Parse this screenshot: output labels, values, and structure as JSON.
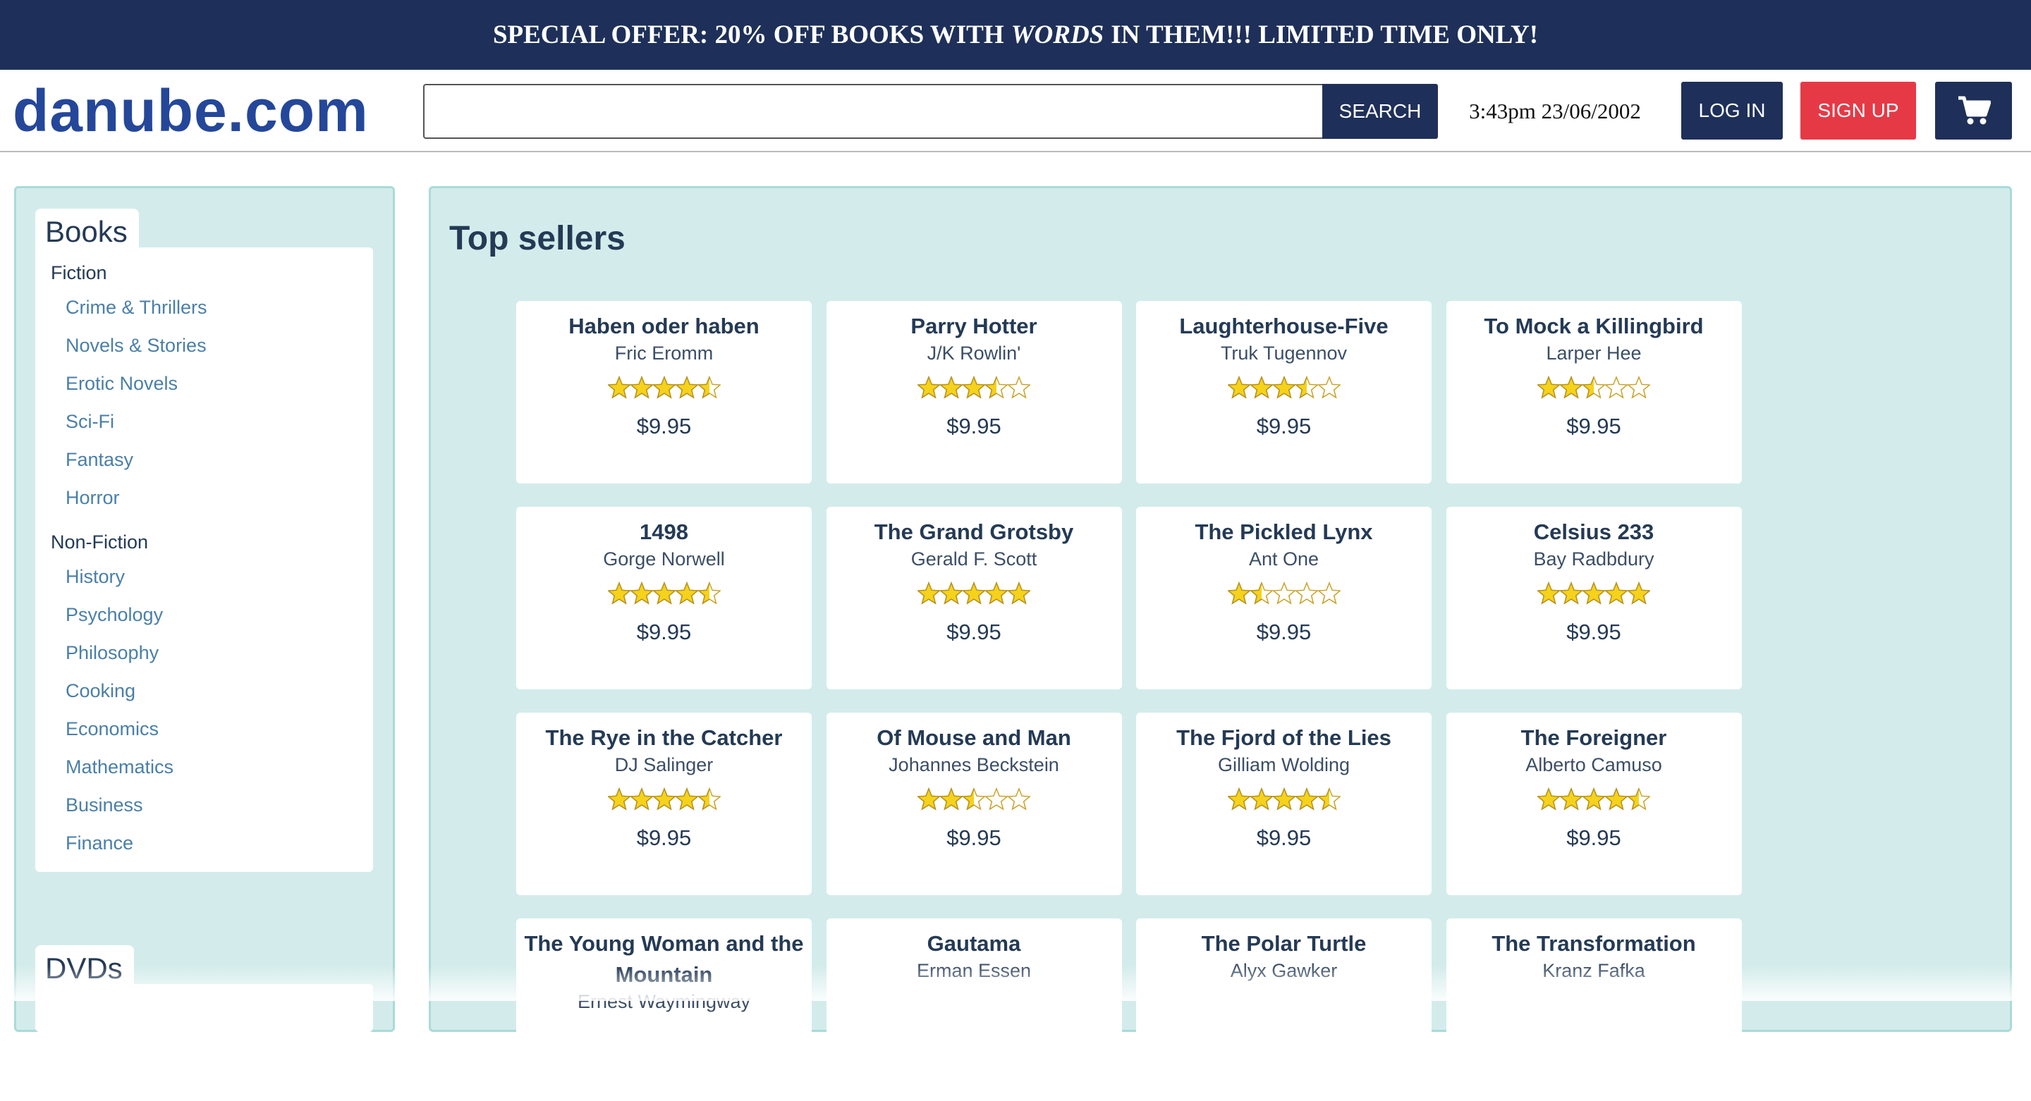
{
  "banner": {
    "before": "SPECIAL OFFER: 20% OFF BOOKS WITH",
    "emphasis": "WORDS",
    "after": "IN THEM!!! LIMITED TIME ONLY!"
  },
  "header": {
    "logo": "danube.com",
    "search_button": "SEARCH",
    "datetime": "3:43pm 23/06/2002",
    "login": "LOG IN",
    "signup": "SIGN UP"
  },
  "sidebar": {
    "sections": [
      {
        "title": "Books",
        "groups": [
          {
            "name": "Fiction",
            "items": [
              "Crime & Thrillers",
              "Novels & Stories",
              "Erotic Novels",
              "Sci-Fi",
              "Fantasy",
              "Horror"
            ]
          },
          {
            "name": "Non-Fiction",
            "items": [
              "History",
              "Psychology",
              "Philosophy",
              "Cooking",
              "Economics",
              "Mathematics",
              "Business",
              "Finance"
            ]
          }
        ]
      },
      {
        "title": "DVDs"
      }
    ]
  },
  "main": {
    "title": "Top sellers",
    "books": [
      {
        "title": "Haben oder haben",
        "author": "Fric Eromm",
        "rating": 4.5,
        "price": "$9.95"
      },
      {
        "title": "Parry Hotter",
        "author": "J/K Rowlin'",
        "rating": 3.5,
        "price": "$9.95"
      },
      {
        "title": "Laughterhouse-Five",
        "author": "Truk Tugennov",
        "rating": 3.5,
        "price": "$9.95"
      },
      {
        "title": "To Mock a Killingbird",
        "author": "Larper Hee",
        "rating": 2.5,
        "price": "$9.95"
      },
      {
        "title": "1498",
        "author": "Gorge Norwell",
        "rating": 4.5,
        "price": "$9.95"
      },
      {
        "title": "The Grand Grotsby",
        "author": "Gerald F. Scott",
        "rating": 5,
        "price": "$9.95"
      },
      {
        "title": "The Pickled Lynx",
        "author": "Ant One",
        "rating": 1.5,
        "price": "$9.95"
      },
      {
        "title": "Celsius 233",
        "author": "Bay Radbdury",
        "rating": 5,
        "price": "$9.95"
      },
      {
        "title": "The Rye in the Catcher",
        "author": "DJ Salinger",
        "rating": 4.5,
        "price": "$9.95"
      },
      {
        "title": "Of Mouse and Man",
        "author": "Johannes Beckstein",
        "rating": 2.5,
        "price": "$9.95"
      },
      {
        "title": "The Fjord of the Lies",
        "author": "Gilliam Wolding",
        "rating": 4.5,
        "price": "$9.95"
      },
      {
        "title": "The Foreigner",
        "author": "Alberto Camuso",
        "rating": 4.5,
        "price": "$9.95"
      },
      {
        "title": "The Young Woman and the Mountain",
        "author": "Ernest Waymingway"
      },
      {
        "title": "Gautama",
        "author": "Erman Essen"
      },
      {
        "title": "The Polar Turtle",
        "author": "Alyx Gawker"
      },
      {
        "title": "The Transformation",
        "author": "Kranz Fafka"
      }
    ]
  }
}
